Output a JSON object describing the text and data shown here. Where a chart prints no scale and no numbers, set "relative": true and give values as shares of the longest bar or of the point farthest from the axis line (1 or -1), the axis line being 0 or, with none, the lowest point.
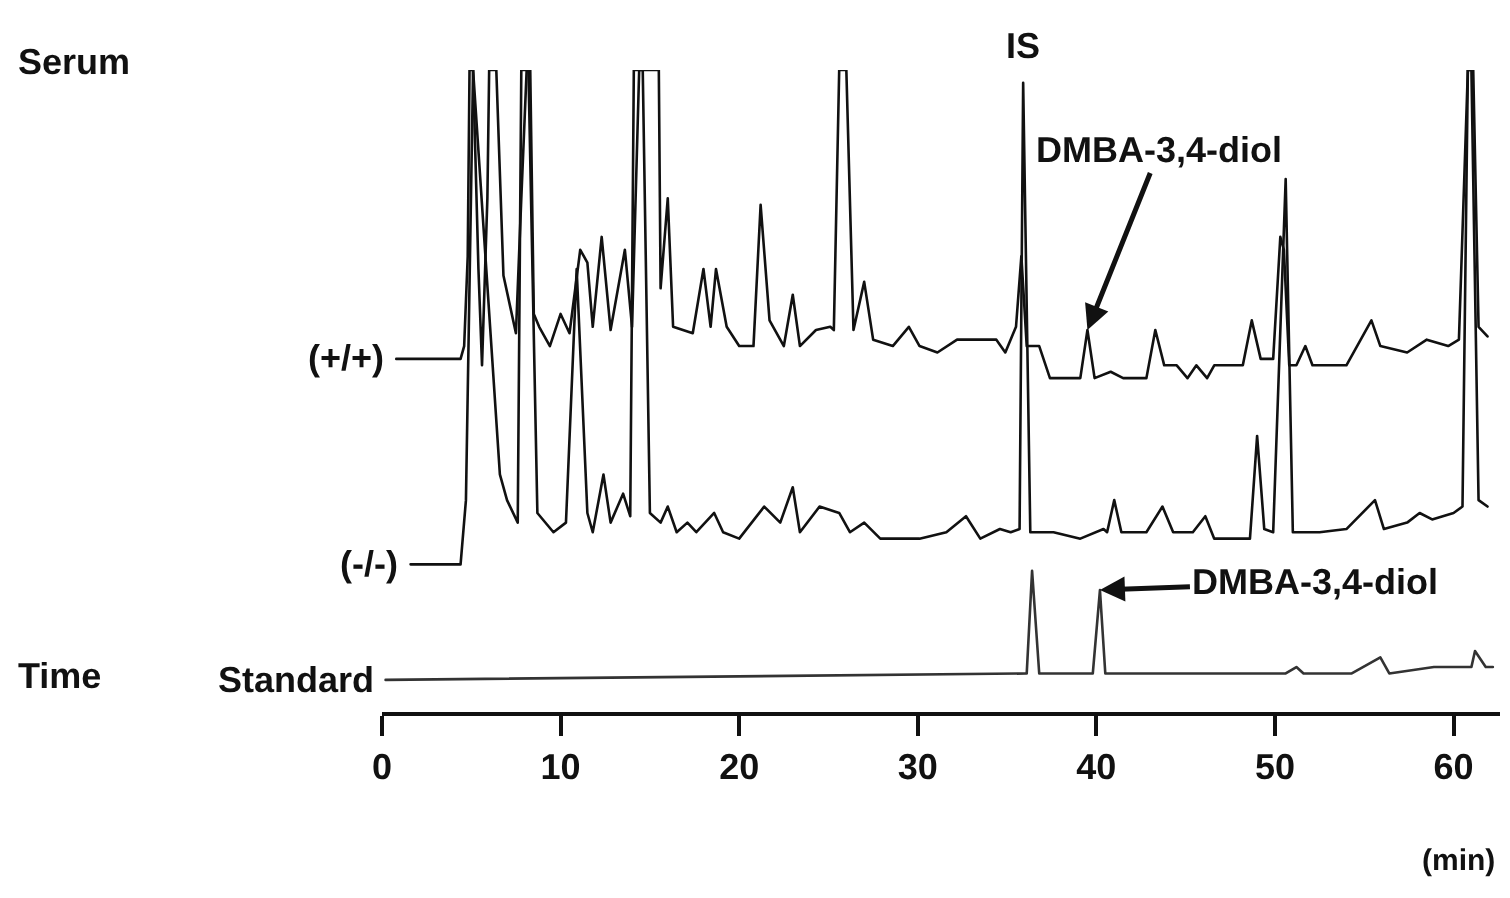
{
  "chart_data": {
    "type": "line",
    "relative": true,
    "xlabel": "(min)",
    "xlim": [
      0,
      62.6
    ],
    "xticks": [
      0,
      10,
      20,
      30,
      40,
      50,
      60
    ],
    "grid": false,
    "legend": false,
    "marker": "none",
    "line_style": "solid",
    "tick_labels": "x",
    "annotations": [
      "Serum",
      "Time",
      "IS",
      {
        "text": "DMBA-3,4-diol",
        "x": 39.5,
        "y": 0.595
      },
      {
        "text": "DMBA-3,4-diol",
        "x": 40.2,
        "y": 0.19
      }
    ],
    "series": [
      {
        "name": "(+/+)",
        "color": "#111111",
        "x": [
          0.8,
          4.4,
          4.6,
          4.8,
          4.9,
          5.1,
          5.4,
          5.6,
          5.9,
          6.0,
          6.4,
          6.8,
          7.5,
          7.8,
          8.1,
          8.3,
          8.5,
          8.8,
          9.4,
          10.0,
          10.5,
          11.1,
          11.5,
          11.8,
          12.3,
          12.8,
          13.6,
          14.0,
          14.4,
          15.5,
          15.6,
          16.0,
          16.3,
          17.4,
          18.0,
          18.4,
          18.7,
          19.3,
          20.0,
          20.8,
          21.2,
          21.7,
          22.5,
          23.0,
          23.4,
          24.3,
          25.1,
          25.3,
          25.6,
          26.0,
          26.4,
          27.0,
          27.5,
          28.6,
          29.5,
          30.1,
          31.1,
          32.2,
          34.4,
          34.9,
          35.5,
          35.8,
          36.1,
          36.8,
          37.4,
          39.1,
          39.5,
          39.9,
          40.8,
          41.5,
          42.8,
          43.3,
          43.8,
          44.5,
          45.1,
          45.6,
          46.2,
          46.6,
          48.2,
          48.7,
          49.2,
          49.9,
          50.3,
          50.5,
          50.8,
          51.2,
          51.7,
          52.1,
          54.0,
          55.4,
          55.9,
          57.4,
          58.5,
          59.7,
          60.3,
          60.8,
          61.1,
          61.4,
          61.9
        ],
        "values": [
          0.55,
          0.55,
          0.57,
          0.71,
          1,
          1,
          0.69,
          0.54,
          0.8,
          1,
          1,
          0.68,
          0.59,
          0.8,
          1,
          1,
          0.62,
          0.6,
          0.57,
          0.62,
          0.59,
          0.72,
          0.7,
          0.6,
          0.74,
          0.595,
          0.72,
          0.6,
          1,
          1,
          0.66,
          0.8,
          0.6,
          0.59,
          0.69,
          0.6,
          0.69,
          0.6,
          0.57,
          0.57,
          0.79,
          0.61,
          0.57,
          0.65,
          0.57,
          0.595,
          0.6,
          0.595,
          1,
          1,
          0.595,
          0.67,
          0.58,
          0.57,
          0.6,
          0.57,
          0.56,
          0.58,
          0.58,
          0.56,
          0.6,
          0.71,
          0.57,
          0.57,
          0.52,
          0.52,
          0.595,
          0.52,
          0.53,
          0.52,
          0.52,
          0.595,
          0.54,
          0.54,
          0.52,
          0.54,
          0.52,
          0.54,
          0.54,
          0.61,
          0.55,
          0.55,
          0.74,
          0.72,
          0.54,
          0.54,
          0.57,
          0.54,
          0.54,
          0.61,
          0.57,
          0.56,
          0.58,
          0.57,
          0.58,
          1,
          1,
          0.6,
          0.585
        ]
      },
      {
        "name": "(-/-)",
        "color": "#111111",
        "x": [
          1.6,
          4.4,
          4.7,
          5.1,
          6.6,
          7.0,
          7.6,
          7.8,
          8.2,
          8.7,
          9.6,
          10.3,
          10.9,
          11.5,
          11.8,
          12.4,
          12.8,
          13.5,
          13.9,
          14.1,
          14.6,
          15.0,
          15.6,
          16.0,
          16.5,
          17.1,
          17.6,
          18.6,
          19.1,
          20.0,
          21.4,
          22.3,
          23.0,
          23.4,
          24.5,
          25.6,
          26.2,
          27.0,
          27.9,
          30.1,
          31.6,
          32.7,
          33.5,
          34.6,
          35.2,
          35.7,
          35.9,
          36.3,
          37.6,
          39.1,
          40.4,
          40.6,
          41.0,
          41.4,
          42.8,
          43.7,
          44.3,
          45.4,
          46.1,
          46.6,
          48.6,
          49.0,
          49.4,
          49.9,
          50.6,
          51.0,
          52.5,
          54.0,
          55.6,
          56.1,
          57.4,
          58.1,
          58.8,
          60.0,
          60.5,
          60.8,
          61.0,
          61.4,
          61.9
        ],
        "values": [
          0.23,
          0.23,
          0.33,
          1,
          0.37,
          0.33,
          0.295,
          1,
          1,
          0.31,
          0.28,
          0.295,
          0.69,
          0.31,
          0.28,
          0.37,
          0.295,
          0.34,
          0.305,
          1,
          1,
          0.31,
          0.295,
          0.32,
          0.28,
          0.295,
          0.28,
          0.31,
          0.28,
          0.27,
          0.32,
          0.295,
          0.35,
          0.28,
          0.32,
          0.31,
          0.28,
          0.295,
          0.27,
          0.27,
          0.28,
          0.305,
          0.27,
          0.285,
          0.28,
          0.285,
          0.98,
          0.28,
          0.28,
          0.27,
          0.285,
          0.28,
          0.33,
          0.28,
          0.28,
          0.32,
          0.28,
          0.28,
          0.305,
          0.27,
          0.27,
          0.43,
          0.285,
          0.28,
          0.83,
          0.28,
          0.28,
          0.285,
          0.33,
          0.285,
          0.295,
          0.31,
          0.3,
          0.31,
          0.32,
          1,
          1,
          0.33,
          0.32
        ]
      },
      {
        "name": "Standard",
        "color": "#333333",
        "x": [
          0.2,
          36.1,
          36.4,
          36.8,
          39.8,
          40.2,
          40.5,
          50.6,
          51.2,
          51.6,
          54.3,
          55.9,
          56.4,
          58.9,
          61.0,
          61.2,
          61.8,
          62.2
        ],
        "values": [
          0.05,
          0.06,
          0.22,
          0.06,
          0.06,
          0.19,
          0.06,
          0.06,
          0.07,
          0.06,
          0.06,
          0.085,
          0.06,
          0.07,
          0.07,
          0.095,
          0.07,
          0.07
        ]
      }
    ]
  }
}
